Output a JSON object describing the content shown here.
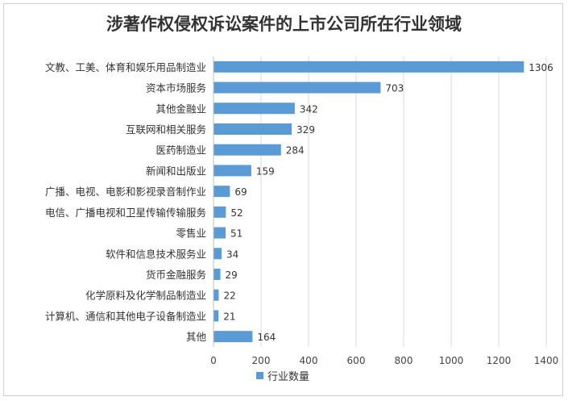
{
  "chart_data": {
    "type": "bar",
    "orientation": "horizontal",
    "title": "涉著作权侵权诉讼案件的上市公司所在行业领域",
    "categories": [
      "文教、工美、体育和娱乐用品制造业",
      "资本市场服务",
      "其他金融业",
      "互联网和相关服务",
      "医药制造业",
      "新闻和出版业",
      "广播、电视、电影和影视录音制作业",
      "电信、广播电视和卫星传输传输服务",
      "零售业",
      "软件和信息技术服务业",
      "货币金融服务",
      "化学原料及化学制品制造业",
      "计算机、通信和其他电子设备制造业",
      "其他"
    ],
    "series": [
      {
        "name": "行业数量",
        "values": [
          1306,
          703,
          342,
          329,
          284,
          159,
          69,
          52,
          51,
          34,
          29,
          22,
          21,
          164
        ]
      }
    ],
    "xlim": [
      0,
      1400
    ],
    "xticks": [
      "0",
      "200",
      "400",
      "600",
      "800",
      "1000",
      "1200",
      "1400"
    ],
    "grid": "vertical",
    "legend_position": "bottom",
    "bar_color": "#5b9bd5"
  }
}
